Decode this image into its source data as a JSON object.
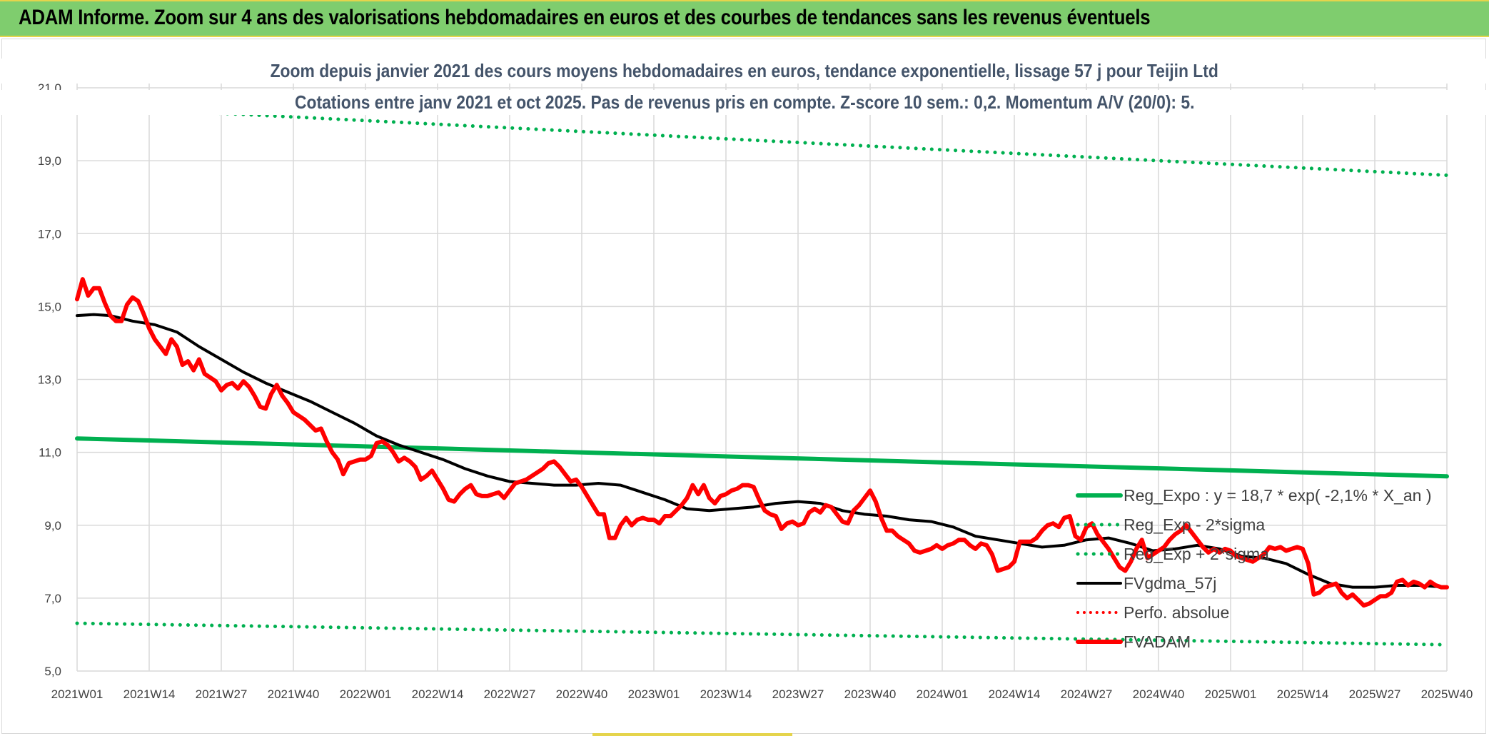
{
  "banner": {
    "title": "ADAM Informe. Zoom sur 4 ans des valorisations hebdomadaires en euros et des courbes de tendances sans les revenus éventuels"
  },
  "chart_data": {
    "type": "line",
    "title": "Zoom depuis janvier 2021 des cours moyens hebdomadaires en euros, tendance exponentielle, lissage 57 j pour Teijin Ltd",
    "subtitle": "Cotations entre janv 2021 et oct 2025. Pas de revenus pris en compte. Z-score 10 sem.: 0,2. Momentum A/V (20/0): 5.",
    "xlabel": "",
    "ylabel": "",
    "x_tick_labels": [
      "2021W01",
      "2021W14",
      "2021W27",
      "2021W40",
      "2022W01",
      "2022W14",
      "2022W27",
      "2022W40",
      "2023W01",
      "2023W14",
      "2023W27",
      "2023W40",
      "2024W01",
      "2024W14",
      "2024W27",
      "2024W40",
      "2025W01",
      "2025W14",
      "2025W27",
      "2025W40"
    ],
    "y_tick_labels": [
      "5,0",
      "7,0",
      "9,0",
      "11,0",
      "13,0",
      "15,0",
      "17,0",
      "19,0",
      "21,0"
    ],
    "ylim": [
      5,
      21
    ],
    "xlim": [
      0,
      247
    ],
    "grid": true,
    "legend_position": "right",
    "series": [
      {
        "name": "Reg_Expo : y = 18,7 * exp( -2,1% *  X_an )",
        "color": "#00b050",
        "style": "solid",
        "width": 6,
        "x": [
          0,
          247
        ],
        "values": [
          11.38,
          10.34
        ]
      },
      {
        "name": "Reg_Exp - 2*sigma",
        "color": "#00b050",
        "style": "dotted",
        "width": 5,
        "x": [
          0,
          247
        ],
        "values": [
          6.31,
          5.72
        ]
      },
      {
        "name": "Reg_Exp + 2*sigma",
        "color": "#00b050",
        "style": "dotted",
        "width": 5,
        "x": [
          0,
          247
        ],
        "values": [
          20.5,
          18.6
        ]
      },
      {
        "name": "FVgdma_57j",
        "color": "#000000",
        "style": "solid",
        "width": 4,
        "x": [
          0,
          3,
          6,
          10,
          14,
          18,
          22,
          26,
          30,
          34,
          38,
          42,
          46,
          50,
          54,
          58,
          62,
          66,
          70,
          74,
          78,
          82,
          86,
          90,
          94,
          98,
          102,
          106,
          110,
          114,
          118,
          122,
          126,
          130,
          134,
          138,
          142,
          146,
          150,
          154,
          158,
          162,
          166,
          170,
          174,
          178,
          182,
          186,
          190,
          194,
          198,
          202,
          206,
          210,
          214,
          218,
          222,
          226,
          230,
          234,
          238,
          242,
          247
        ],
        "values": [
          14.75,
          14.78,
          14.75,
          14.6,
          14.5,
          14.3,
          13.9,
          13.55,
          13.2,
          12.9,
          12.65,
          12.4,
          12.1,
          11.8,
          11.45,
          11.2,
          11.0,
          10.8,
          10.55,
          10.35,
          10.2,
          10.15,
          10.1,
          10.1,
          10.15,
          10.1,
          9.9,
          9.7,
          9.45,
          9.4,
          9.45,
          9.5,
          9.6,
          9.65,
          9.6,
          9.4,
          9.3,
          9.25,
          9.15,
          9.1,
          8.95,
          8.7,
          8.6,
          8.5,
          8.4,
          8.45,
          8.6,
          8.65,
          8.5,
          8.3,
          8.35,
          8.45,
          8.35,
          8.15,
          8.1,
          7.95,
          7.65,
          7.4,
          7.3,
          7.3,
          7.35,
          7.35,
          7.3
        ]
      },
      {
        "name": "Perfo. absolue",
        "color": "#ff0000",
        "style": "dotted",
        "width": 4,
        "x": [],
        "values": []
      },
      {
        "name": "FVADAM",
        "color": "#ff0000",
        "style": "solid",
        "width": 6,
        "x": [
          0,
          1,
          2,
          3,
          4,
          5,
          6,
          7,
          8,
          9,
          10,
          11,
          12,
          13,
          14,
          15,
          16,
          17,
          18,
          19,
          20,
          21,
          22,
          23,
          24,
          25,
          26,
          27,
          28,
          29,
          30,
          31,
          32,
          33,
          34,
          35,
          36,
          37,
          38,
          39,
          40,
          41,
          42,
          43,
          44,
          45,
          46,
          47,
          48,
          49,
          50,
          51,
          52,
          53,
          54,
          55,
          56,
          57,
          58,
          59,
          60,
          61,
          62,
          63,
          64,
          65,
          66,
          67,
          68,
          69,
          70,
          71,
          72,
          73,
          74,
          75,
          76,
          77,
          78,
          79,
          80,
          81,
          82,
          83,
          84,
          85,
          86,
          87,
          88,
          89,
          90,
          91,
          92,
          93,
          94,
          95,
          96,
          97,
          98,
          99,
          100,
          101,
          102,
          103,
          104,
          105,
          106,
          107,
          108,
          109,
          110,
          111,
          112,
          113,
          114,
          115,
          116,
          117,
          118,
          119,
          120,
          121,
          122,
          123,
          124,
          125,
          126,
          127,
          128,
          129,
          130,
          131,
          132,
          133,
          134,
          135,
          136,
          137,
          138,
          139,
          140,
          141,
          142,
          143,
          144,
          145,
          146,
          147,
          148,
          149,
          150,
          151,
          152,
          153,
          154,
          155,
          156,
          157,
          158,
          159,
          160,
          161,
          162,
          163,
          164,
          165,
          166,
          167,
          168,
          169,
          170,
          171,
          172,
          173,
          174,
          175,
          176,
          177,
          178,
          179,
          180,
          181,
          182,
          183,
          184,
          185,
          186,
          187,
          188,
          189,
          190,
          191,
          192,
          193,
          194,
          195,
          196,
          197,
          198,
          199,
          200,
          201,
          202,
          203,
          204,
          205,
          206,
          207,
          208,
          209,
          210,
          211,
          212,
          213,
          214,
          215,
          216,
          217,
          218,
          219,
          220,
          221,
          222,
          223,
          224,
          225,
          226,
          227,
          228,
          229,
          230,
          231,
          232,
          233,
          234,
          235,
          236,
          237,
          238,
          239,
          240,
          241,
          242,
          243,
          244,
          245,
          246,
          247
        ],
        "values": [
          15.2,
          15.75,
          15.3,
          15.5,
          15.5,
          15.1,
          14.75,
          14.6,
          14.6,
          15.05,
          15.25,
          15.15,
          14.8,
          14.4,
          14.1,
          13.9,
          13.7,
          14.1,
          13.9,
          13.4,
          13.5,
          13.25,
          13.55,
          13.15,
          13.05,
          12.95,
          12.7,
          12.85,
          12.9,
          12.75,
          12.95,
          12.8,
          12.55,
          12.25,
          12.2,
          12.6,
          12.85,
          12.55,
          12.35,
          12.1,
          12.0,
          11.9,
          11.75,
          11.6,
          11.65,
          11.3,
          11.0,
          10.8,
          10.4,
          10.7,
          10.75,
          10.8,
          10.8,
          10.9,
          11.25,
          11.3,
          11.2,
          11.0,
          10.75,
          10.85,
          10.75,
          10.6,
          10.25,
          10.35,
          10.5,
          10.25,
          10.0,
          9.7,
          9.65,
          9.85,
          10.0,
          10.1,
          9.85,
          9.8,
          9.8,
          9.85,
          9.9,
          9.75,
          9.95,
          10.15,
          10.2,
          10.25,
          10.35,
          10.45,
          10.55,
          10.7,
          10.75,
          10.6,
          10.4,
          10.2,
          10.25,
          10.05,
          9.8,
          9.55,
          9.3,
          9.3,
          8.65,
          8.65,
          9.0,
          9.2,
          9.0,
          9.15,
          9.2,
          9.15,
          9.15,
          9.05,
          9.25,
          9.25,
          9.4,
          9.55,
          9.75,
          10.1,
          9.85,
          10.1,
          9.75,
          9.6,
          9.8,
          9.85,
          9.95,
          10.0,
          10.1,
          10.1,
          10.05,
          9.7,
          9.4,
          9.3,
          9.25,
          8.9,
          9.05,
          9.1,
          9.0,
          9.05,
          9.35,
          9.45,
          9.35,
          9.55,
          9.5,
          9.3,
          9.1,
          9.05,
          9.4,
          9.55,
          9.75,
          9.95,
          9.65,
          9.2,
          8.85,
          8.85,
          8.7,
          8.6,
          8.5,
          8.3,
          8.25,
          8.3,
          8.35,
          8.45,
          8.35,
          8.45,
          8.5,
          8.6,
          8.6,
          8.45,
          8.35,
          8.5,
          8.45,
          8.2,
          7.75,
          7.8,
          7.85,
          8.0,
          8.55,
          8.55,
          8.55,
          8.65,
          8.85,
          9.0,
          9.05,
          8.95,
          9.2,
          9.25,
          8.7,
          8.6,
          8.95,
          9.05,
          8.75,
          8.55,
          8.35,
          8.1,
          7.85,
          7.75,
          8.0,
          8.35,
          8.6,
          8.1,
          8.2,
          8.3,
          8.4,
          8.6,
          8.75,
          8.85,
          9.0,
          8.8,
          8.6,
          8.4,
          8.25,
          8.35,
          8.25,
          8.35,
          8.3,
          8.15,
          8.1,
          8.05,
          8.0,
          8.1,
          8.2,
          8.4,
          8.35,
          8.4,
          8.3,
          8.35,
          8.4,
          8.35,
          7.95,
          7.1,
          7.15,
          7.3,
          7.35,
          7.4,
          7.15,
          7.0,
          7.1,
          6.95,
          6.8,
          6.85,
          6.95,
          7.05,
          7.05,
          7.15,
          7.45,
          7.5,
          7.35,
          7.45,
          7.4,
          7.3,
          7.45,
          7.35,
          7.3,
          7.3
        ]
      }
    ]
  },
  "legend_order": [
    0,
    1,
    2,
    3,
    4,
    5
  ]
}
